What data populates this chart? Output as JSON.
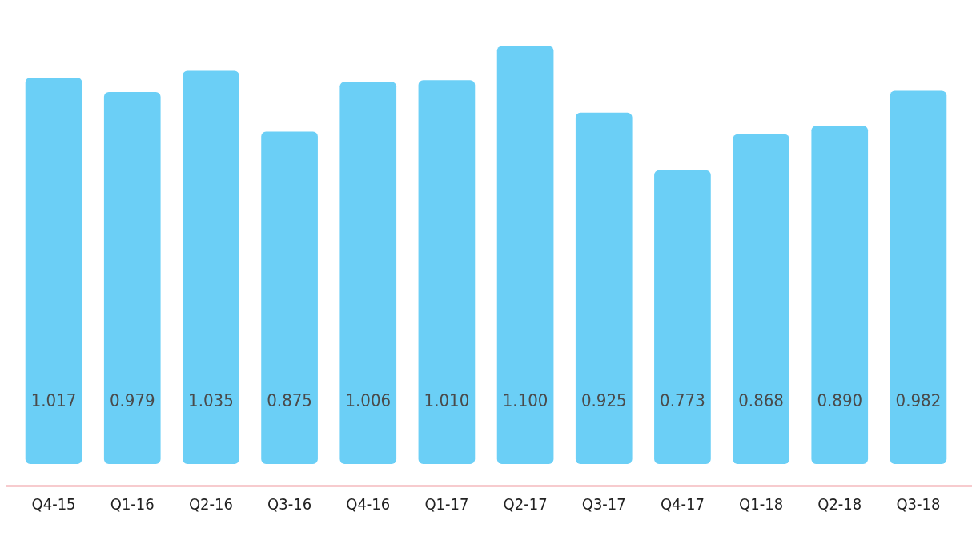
{
  "chart_data": {
    "type": "bar",
    "categories": [
      "Q4-15",
      "Q1-16",
      "Q2-16",
      "Q3-16",
      "Q4-16",
      "Q1-17",
      "Q2-17",
      "Q3-17",
      "Q4-17",
      "Q1-18",
      "Q2-18",
      "Q3-18"
    ],
    "values": [
      1.017,
      0.979,
      1.035,
      0.875,
      1.006,
      1.01,
      1.1,
      0.925,
      0.773,
      0.868,
      0.89,
      0.982
    ],
    "value_labels": [
      "1.017",
      "0.979",
      "1.035",
      "0.875",
      "1.006",
      "1.010",
      "1.100",
      "0.925",
      "0.773",
      "0.868",
      "0.890",
      "0.982"
    ],
    "color": "#6bcff6",
    "tick_labels": "x",
    "grid": false,
    "legend": false
  }
}
